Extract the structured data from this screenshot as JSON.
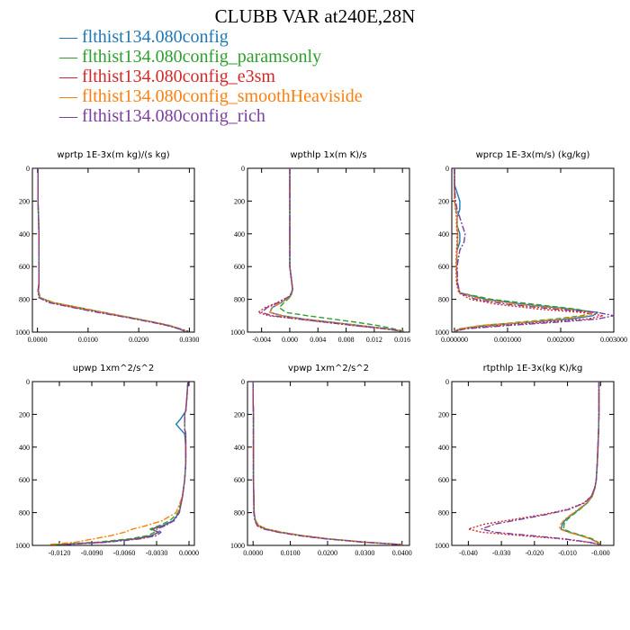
{
  "title": "CLUBB VAR at240E,28N",
  "colors": {
    "blue": "#1f77b4",
    "green": "#2ca02c",
    "red": "#d62728",
    "orange": "#ff7f0e",
    "purple": "#7b3f9e"
  },
  "legend": [
    {
      "label": "flthist134.080config",
      "color": "#1f77b4",
      "dash": "solid"
    },
    {
      "label": "flthist134.080config_paramsonly",
      "color": "#2ca02c",
      "dash": "dashed"
    },
    {
      "label": "flthist134.080config_e3sm",
      "color": "#d62728",
      "dash": "dotted"
    },
    {
      "label": "flthist134.080config_smoothHeaviside",
      "color": "#ff7f0e",
      "dash": "dashdot"
    },
    {
      "label": "flthist134.080config_rich",
      "color": "#7b3f9e",
      "dash": "dashdot"
    }
  ],
  "chart_data": [
    {
      "type": "line",
      "title": "wprtp  1E-3x(m kg)/(s kg)",
      "xlim": [
        -0.001,
        0.031
      ],
      "ylim": [
        0,
        1000
      ],
      "y_reversed": true,
      "xticks": [
        0,
        0.01,
        0.02,
        0.03
      ],
      "xtick_labels": [
        "0.0000",
        "0.0100",
        "0.0200",
        "0.0300"
      ],
      "yticks": [
        0,
        200,
        400,
        600,
        800,
        1000
      ],
      "y": [
        0,
        100,
        200,
        300,
        400,
        500,
        600,
        700,
        750,
        790,
        820,
        850,
        880,
        910,
        940,
        960,
        980,
        995
      ],
      "series": [
        {
          "values": [
            0.0001,
            0.0001,
            0.0001,
            0.0002,
            0.0003,
            0.0003,
            0.0003,
            0.0003,
            0.0002,
            0.0005,
            0.003,
            0.008,
            0.013,
            0.018,
            0.023,
            0.026,
            0.028,
            0.029
          ]
        },
        {
          "values": [
            0.0001,
            0.0001,
            0.0001,
            0.0002,
            0.0003,
            0.0003,
            0.0003,
            0.0003,
            0.0002,
            0.0006,
            0.0032,
            0.0082,
            0.0132,
            0.0182,
            0.0232,
            0.0262,
            0.0282,
            0.0292
          ]
        },
        {
          "values": [
            0.0001,
            0.0001,
            0.0001,
            0.0002,
            0.0003,
            0.0003,
            0.0003,
            0.0003,
            0.0001,
            0.0004,
            0.0025,
            0.0075,
            0.0125,
            0.0178,
            0.0228,
            0.0258,
            0.0283,
            0.0298
          ]
        },
        {
          "values": [
            0.0001,
            0.0001,
            0.0001,
            0.0002,
            0.0003,
            0.0003,
            0.0003,
            0.0003,
            0.0002,
            0.0005,
            0.0031,
            0.0081,
            0.013,
            0.018,
            0.023,
            0.026,
            0.0282,
            0.0295
          ]
        },
        {
          "values": [
            0.0001,
            0.0001,
            0.0001,
            0.0002,
            0.0003,
            0.0003,
            0.0003,
            0.0003,
            0.0001,
            0.0003,
            0.0022,
            0.007,
            0.012,
            0.0175,
            0.0226,
            0.0256,
            0.028,
            0.0296
          ]
        }
      ]
    },
    {
      "type": "line",
      "title": "wpthlp  1x(m K)/s",
      "xlim": [
        -0.006,
        0.017
      ],
      "ylim": [
        0,
        1000
      ],
      "y_reversed": true,
      "xticks": [
        -0.004,
        0,
        0.004,
        0.008,
        0.012,
        0.016
      ],
      "xtick_labels": [
        "-0.004",
        "0.000",
        "0.004",
        "0.008",
        "0.012",
        "0.016"
      ],
      "yticks": [
        0,
        200,
        400,
        600,
        800,
        1000
      ],
      "y": [
        0,
        100,
        200,
        300,
        400,
        500,
        600,
        700,
        740,
        780,
        820,
        850,
        880,
        900,
        920,
        940,
        960,
        980,
        995
      ],
      "series": [
        {
          "values": [
            0,
            0,
            0,
            0,
            0,
            0,
            0,
            0.0003,
            0.0004,
            0.0001,
            -0.0012,
            -0.0025,
            -0.0028,
            -0.001,
            0.002,
            0.006,
            0.01,
            0.014,
            0.016
          ]
        },
        {
          "values": [
            0,
            0,
            0,
            0,
            0,
            0,
            0,
            0.0003,
            0.0004,
            0.0002,
            -0.0008,
            -0.0015,
            -0.0005,
            0.0025,
            0.006,
            0.0095,
            0.0125,
            0.0148,
            0.0162
          ]
        },
        {
          "values": [
            0,
            0,
            0,
            0,
            0,
            0,
            0,
            0.0003,
            0.0004,
            0,
            -0.0018,
            -0.0035,
            -0.0045,
            -0.003,
            0.001,
            0.005,
            0.009,
            0.0135,
            0.016
          ]
        },
        {
          "values": [
            0,
            0,
            0,
            0,
            0,
            0,
            0,
            0.0003,
            0.0004,
            0.0001,
            -0.0012,
            -0.0026,
            -0.0028,
            -0.0012,
            0.0018,
            0.0058,
            0.0098,
            0.0138,
            0.016
          ]
        },
        {
          "values": [
            0,
            0,
            0,
            0,
            0,
            0,
            0,
            0.0003,
            0.0004,
            0,
            -0.0016,
            -0.0032,
            -0.004,
            -0.0025,
            0.0012,
            0.0052,
            0.0092,
            0.0136,
            0.016
          ]
        }
      ]
    },
    {
      "type": "line",
      "title": "wprcp  1E-3x(m/s) (kg/kg)",
      "xlim": [
        -5e-05,
        0.003
      ],
      "ylim": [
        0,
        1000
      ],
      "y_reversed": true,
      "xticks": [
        0,
        0.001,
        0.002,
        0.003
      ],
      "xtick_labels": [
        "0.000000",
        "0.001000",
        "0.002000",
        "0.003000"
      ],
      "yticks": [
        0,
        200,
        400,
        600,
        800,
        1000
      ],
      "y": [
        0,
        100,
        200,
        250,
        300,
        350,
        400,
        450,
        500,
        600,
        700,
        760,
        800,
        830,
        860,
        880,
        900,
        920,
        940,
        960,
        980,
        995
      ],
      "series": [
        {
          "values": [
            0,
            0,
            0.0001,
            0.0001,
            5e-05,
            5e-05,
            0.0001,
            0.0001,
            5e-05,
            4e-05,
            5e-05,
            0.0001,
            0.0006,
            0.0013,
            0.0022,
            0.0027,
            0.0026,
            0.0022,
            0.0014,
            0.0006,
            0.0001,
            0
          ]
        },
        {
          "values": [
            0,
            0,
            0,
            3e-05,
            5e-05,
            5e-05,
            6e-05,
            6e-05,
            5e-05,
            4e-05,
            5e-05,
            0.0001,
            0.0007,
            0.0015,
            0.0023,
            0.0026,
            0.0024,
            0.0019,
            0.0012,
            0.0005,
            0.0001,
            0
          ]
        },
        {
          "values": [
            0,
            0,
            0,
            2e-05,
            4e-05,
            4e-05,
            5e-05,
            5e-05,
            4e-05,
            3e-05,
            4e-05,
            8e-05,
            0.0003,
            0.0008,
            0.0016,
            0.0024,
            0.0028,
            0.0025,
            0.0017,
            0.0008,
            0.0002,
            0
          ]
        },
        {
          "values": [
            0,
            0,
            0,
            3e-05,
            5e-05,
            5e-05,
            6e-05,
            6e-05,
            5e-05,
            4e-05,
            5e-05,
            0.0001,
            0.0005,
            0.0012,
            0.0021,
            0.0026,
            0.0025,
            0.002,
            0.0013,
            0.0005,
            0.0001,
            0
          ]
        },
        {
          "values": [
            0,
            0,
            2e-05,
            5e-05,
            0.0001,
            0.00015,
            0.0002,
            0.00018,
            0.0001,
            5e-05,
            6e-05,
            0.0001,
            0.0004,
            0.001,
            0.0019,
            0.0027,
            0.003,
            0.0027,
            0.0019,
            0.001,
            0.0002,
            0
          ]
        }
      ]
    },
    {
      "type": "line",
      "title": "upwp  1xm^2/s^2",
      "xlim": [
        -0.0145,
        0.0005
      ],
      "ylim": [
        0,
        1000
      ],
      "y_reversed": true,
      "xticks": [
        -0.012,
        -0.009,
        -0.006,
        -0.003,
        0
      ],
      "xtick_labels": [
        "-0.0120",
        "-0.0090",
        "-0.0060",
        "-0.0030",
        "0.0000"
      ],
      "yticks": [
        0,
        200,
        400,
        600,
        800,
        1000
      ],
      "y": [
        0,
        100,
        180,
        200,
        230,
        260,
        290,
        320,
        400,
        500,
        600,
        700,
        800,
        850,
        880,
        900,
        920,
        940,
        960,
        980,
        995
      ],
      "series": [
        {
          "values": [
            -0.0001,
            -0.0002,
            -0.0003,
            -0.0005,
            -0.0008,
            -0.0012,
            -0.0008,
            -0.0004,
            -0.0003,
            -0.0003,
            -0.0004,
            -0.0006,
            -0.0009,
            -0.0015,
            -0.0025,
            -0.0035,
            -0.0028,
            -0.0035,
            -0.005,
            -0.008,
            -0.012
          ]
        },
        {
          "values": [
            -0.0001,
            -0.0002,
            -0.0003,
            -0.0004,
            -0.0004,
            -0.0004,
            -0.0004,
            -0.0003,
            -0.0003,
            -0.0003,
            -0.0004,
            -0.0006,
            -0.001,
            -0.0018,
            -0.0028,
            -0.0036,
            -0.0032,
            -0.0038,
            -0.0055,
            -0.0085,
            -0.0125
          ]
        },
        {
          "values": [
            -0.0001,
            -0.0002,
            -0.0003,
            -0.0004,
            -0.0004,
            -0.0004,
            -0.0004,
            -0.0003,
            -0.0003,
            -0.0003,
            -0.0004,
            -0.0006,
            -0.0009,
            -0.0014,
            -0.0023,
            -0.0034,
            -0.0029,
            -0.0033,
            -0.0048,
            -0.0078,
            -0.0118
          ]
        },
        {
          "values": [
            -0.0001,
            -0.0002,
            -0.0003,
            -0.0004,
            -0.0004,
            -0.0004,
            -0.0004,
            -0.0003,
            -0.0003,
            -0.0003,
            -0.0004,
            -0.0006,
            -0.0012,
            -0.0025,
            -0.004,
            -0.0052,
            -0.006,
            -0.0072,
            -0.0088,
            -0.0105,
            -0.013
          ]
        },
        {
          "values": [
            -0.0001,
            -0.0002,
            -0.0003,
            -0.0004,
            -0.0004,
            -0.0004,
            -0.0004,
            -0.0003,
            -0.0003,
            -0.0003,
            -0.0004,
            -0.0006,
            -0.0009,
            -0.0014,
            -0.0022,
            -0.003,
            -0.0026,
            -0.003,
            -0.0045,
            -0.0075,
            -0.0115
          ]
        }
      ]
    },
    {
      "type": "line",
      "title": "vpwp  1xm^2/s^2",
      "xlim": [
        -0.0015,
        0.042
      ],
      "ylim": [
        0,
        1000
      ],
      "y_reversed": true,
      "xticks": [
        0,
        0.01,
        0.02,
        0.03,
        0.04
      ],
      "xtick_labels": [
        "0.0000",
        "0.0100",
        "0.0200",
        "0.0300",
        "0.0400"
      ],
      "yticks": [
        0,
        200,
        400,
        600,
        800,
        1000
      ],
      "y": [
        0,
        100,
        200,
        300,
        400,
        500,
        600,
        700,
        800,
        850,
        880,
        900,
        920,
        940,
        960,
        980,
        995
      ],
      "series": [
        {
          "values": [
            0,
            0,
            0.0001,
            0.0001,
            0.0001,
            0.0001,
            0.0001,
            0.0002,
            0.0003,
            0.0006,
            0.0015,
            0.0035,
            0.0075,
            0.013,
            0.02,
            0.03,
            0.04
          ]
        },
        {
          "values": [
            0,
            0,
            0.0001,
            0.0001,
            0.0001,
            0.0001,
            0.0001,
            0.0002,
            0.0003,
            0.0007,
            0.0017,
            0.0038,
            0.0078,
            0.0133,
            0.0203,
            0.0302,
            0.0402
          ]
        },
        {
          "values": [
            0,
            0,
            0.0001,
            0.0001,
            0.0001,
            0.0001,
            0.0001,
            0.0002,
            0.0002,
            0.0005,
            0.0012,
            0.003,
            0.007,
            0.0125,
            0.0196,
            0.0297,
            0.0398
          ]
        },
        {
          "values": [
            0,
            0,
            0.0001,
            0.0001,
            0.0001,
            0.0001,
            0.0001,
            0.0002,
            0.0003,
            0.0006,
            0.0016,
            0.0036,
            0.0076,
            0.0131,
            0.0201,
            0.0301,
            0.04
          ]
        },
        {
          "values": [
            0,
            0,
            0.0001,
            0.0001,
            0.0001,
            0.0001,
            0.0001,
            0.0002,
            0.0002,
            0.0005,
            0.0011,
            0.0028,
            0.0068,
            0.0122,
            0.0194,
            0.0295,
            0.0397
          ]
        }
      ]
    },
    {
      "type": "line",
      "title": "rtpthlp  1E-3x(kg K)/kg",
      "xlim": [
        -0.045,
        0.004
      ],
      "ylim": [
        0,
        1000
      ],
      "y_reversed": true,
      "xticks": [
        -0.04,
        -0.03,
        -0.02,
        -0.01,
        0
      ],
      "xtick_labels": [
        "-0.040",
        "-0.030",
        "-0.020",
        "-0.010",
        "-0.000"
      ],
      "yticks": [
        0,
        200,
        400,
        600,
        800,
        1000
      ],
      "y": [
        0,
        100,
        200,
        300,
        400,
        500,
        600,
        650,
        700,
        740,
        780,
        810,
        840,
        870,
        900,
        920,
        940,
        960,
        980,
        995
      ],
      "series": [
        {
          "values": [
            -0.0005,
            -0.0005,
            -0.0005,
            -0.0006,
            -0.0008,
            -0.001,
            -0.0013,
            -0.0017,
            -0.0025,
            -0.004,
            -0.0065,
            -0.0085,
            -0.0105,
            -0.0115,
            -0.012,
            -0.0095,
            -0.006,
            -0.003,
            -0.001,
            0
          ]
        },
        {
          "values": [
            -0.0005,
            -0.0005,
            -0.0005,
            -0.0006,
            -0.0008,
            -0.001,
            -0.0013,
            -0.0017,
            -0.0026,
            -0.004,
            -0.0063,
            -0.0082,
            -0.01,
            -0.011,
            -0.0112,
            -0.009,
            -0.0055,
            -0.0025,
            -0.0008,
            0
          ]
        },
        {
          "values": [
            -0.0005,
            -0.0005,
            -0.0005,
            -0.0006,
            -0.0008,
            -0.001,
            -0.0013,
            -0.0018,
            -0.0028,
            -0.005,
            -0.01,
            -0.017,
            -0.026,
            -0.035,
            -0.04,
            -0.036,
            -0.024,
            -0.012,
            -0.004,
            0
          ]
        },
        {
          "values": [
            -0.0005,
            -0.0005,
            -0.0005,
            -0.0006,
            -0.0008,
            -0.001,
            -0.0013,
            -0.0017,
            -0.0026,
            -0.0042,
            -0.0068,
            -0.0088,
            -0.0108,
            -0.012,
            -0.0125,
            -0.0098,
            -0.0062,
            -0.0032,
            -0.0012,
            0
          ]
        },
        {
          "values": [
            -0.0005,
            -0.0005,
            -0.0005,
            -0.0006,
            -0.0008,
            -0.001,
            -0.0013,
            -0.0018,
            -0.0028,
            -0.0048,
            -0.0095,
            -0.016,
            -0.024,
            -0.032,
            -0.036,
            -0.032,
            -0.021,
            -0.011,
            -0.0035,
            0
          ]
        }
      ]
    }
  ]
}
